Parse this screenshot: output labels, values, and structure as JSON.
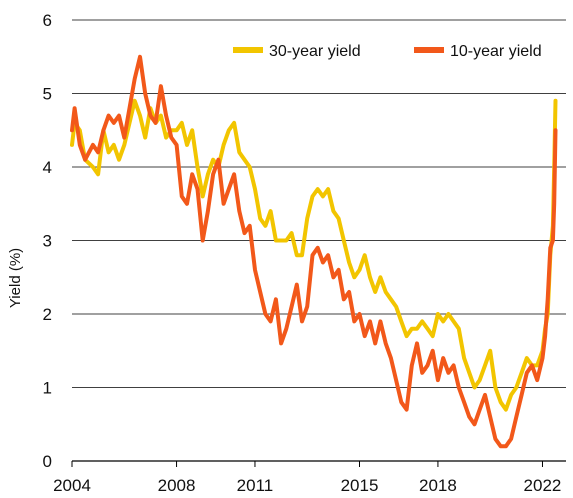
{
  "chart_data": {
    "type": "line",
    "title": "",
    "xlabel": "",
    "ylabel": "Yield (%)",
    "xlim": [
      2004,
      2022.9
    ],
    "ylim": [
      0,
      6
    ],
    "x_ticks": [
      2004,
      2008,
      2011,
      2015,
      2018,
      2022
    ],
    "y_ticks": [
      0,
      1,
      2,
      3,
      4,
      5,
      6
    ],
    "grid": "horizontal",
    "legend_position": "top-right",
    "colors": {
      "thirty": "#F2C500",
      "ten": "#F2581A",
      "grid": "#000000",
      "text": "#111111"
    },
    "series": [
      {
        "name": "30-year yield",
        "color": "#F2C500",
        "x": [
          2004.0,
          2004.1,
          2004.3,
          2004.5,
          2004.8,
          2005.0,
          2005.2,
          2005.4,
          2005.6,
          2005.8,
          2006.0,
          2006.2,
          2006.4,
          2006.6,
          2006.8,
          2007.0,
          2007.2,
          2007.4,
          2007.6,
          2007.8,
          2008.0,
          2008.2,
          2008.4,
          2008.6,
          2008.8,
          2009.0,
          2009.2,
          2009.4,
          2009.6,
          2009.8,
          2010.0,
          2010.2,
          2010.4,
          2010.6,
          2010.8,
          2011.0,
          2011.2,
          2011.4,
          2011.6,
          2011.8,
          2012.0,
          2012.2,
          2012.4,
          2012.6,
          2012.8,
          2013.0,
          2013.2,
          2013.4,
          2013.6,
          2013.8,
          2014.0,
          2014.2,
          2014.4,
          2014.6,
          2014.8,
          2015.0,
          2015.2,
          2015.4,
          2015.6,
          2015.8,
          2016.0,
          2016.2,
          2016.4,
          2016.6,
          2016.8,
          2017.0,
          2017.2,
          2017.4,
          2017.6,
          2017.8,
          2018.0,
          2018.2,
          2018.4,
          2018.6,
          2018.8,
          2019.0,
          2019.2,
          2019.4,
          2019.6,
          2019.8,
          2020.0,
          2020.2,
          2020.4,
          2020.6,
          2020.8,
          2021.0,
          2021.2,
          2021.4,
          2021.6,
          2021.8,
          2022.0,
          2022.1,
          2022.2,
          2022.3,
          2022.4,
          2022.45,
          2022.5
        ],
        "values": [
          4.3,
          4.6,
          4.5,
          4.1,
          4.0,
          3.9,
          4.5,
          4.2,
          4.3,
          4.1,
          4.3,
          4.6,
          4.9,
          4.7,
          4.4,
          4.8,
          4.6,
          4.7,
          4.4,
          4.5,
          4.5,
          4.6,
          4.3,
          4.5,
          4.0,
          3.6,
          3.9,
          4.1,
          4.0,
          4.3,
          4.5,
          4.6,
          4.2,
          4.1,
          4.0,
          3.7,
          3.3,
          3.2,
          3.4,
          3.0,
          3.0,
          3.0,
          3.1,
          2.8,
          2.8,
          3.3,
          3.6,
          3.7,
          3.6,
          3.7,
          3.4,
          3.3,
          3.0,
          2.7,
          2.5,
          2.6,
          2.8,
          2.5,
          2.3,
          2.5,
          2.3,
          2.2,
          2.1,
          1.9,
          1.7,
          1.8,
          1.8,
          1.9,
          1.8,
          1.7,
          2.0,
          1.9,
          2.0,
          1.9,
          1.8,
          1.4,
          1.2,
          1.0,
          1.1,
          1.3,
          1.5,
          1.0,
          0.8,
          0.7,
          0.9,
          1.0,
          1.2,
          1.4,
          1.3,
          1.3,
          1.5,
          1.8,
          2.0,
          2.8,
          3.2,
          4.0,
          4.9
        ]
      },
      {
        "name": "10-year yield",
        "color": "#F2581A",
        "x": [
          2004.0,
          2004.1,
          2004.3,
          2004.5,
          2004.8,
          2005.0,
          2005.2,
          2005.4,
          2005.6,
          2005.8,
          2006.0,
          2006.2,
          2006.4,
          2006.6,
          2006.8,
          2007.0,
          2007.2,
          2007.4,
          2007.6,
          2007.8,
          2008.0,
          2008.2,
          2008.4,
          2008.6,
          2008.8,
          2009.0,
          2009.2,
          2009.4,
          2009.6,
          2009.8,
          2010.0,
          2010.2,
          2010.4,
          2010.6,
          2010.8,
          2011.0,
          2011.2,
          2011.4,
          2011.6,
          2011.8,
          2012.0,
          2012.2,
          2012.4,
          2012.6,
          2012.8,
          2013.0,
          2013.2,
          2013.4,
          2013.6,
          2013.8,
          2014.0,
          2014.2,
          2014.4,
          2014.6,
          2014.8,
          2015.0,
          2015.2,
          2015.4,
          2015.6,
          2015.8,
          2016.0,
          2016.2,
          2016.4,
          2016.6,
          2016.8,
          2017.0,
          2017.2,
          2017.4,
          2017.6,
          2017.8,
          2018.0,
          2018.2,
          2018.4,
          2018.6,
          2018.8,
          2019.0,
          2019.2,
          2019.4,
          2019.6,
          2019.8,
          2020.0,
          2020.2,
          2020.4,
          2020.6,
          2020.8,
          2021.0,
          2021.2,
          2021.4,
          2021.6,
          2021.8,
          2022.0,
          2022.1,
          2022.2,
          2022.3,
          2022.4,
          2022.45,
          2022.5
        ],
        "values": [
          4.5,
          4.8,
          4.3,
          4.1,
          4.3,
          4.2,
          4.5,
          4.7,
          4.6,
          4.7,
          4.4,
          4.8,
          5.2,
          5.5,
          5.0,
          4.7,
          4.6,
          5.1,
          4.7,
          4.4,
          4.3,
          3.6,
          3.5,
          3.9,
          3.7,
          3.0,
          3.4,
          3.9,
          4.1,
          3.5,
          3.7,
          3.9,
          3.4,
          3.1,
          3.2,
          2.6,
          2.3,
          2.0,
          1.9,
          2.2,
          1.6,
          1.8,
          2.1,
          2.4,
          1.9,
          2.1,
          2.8,
          2.9,
          2.7,
          2.8,
          2.5,
          2.6,
          2.2,
          2.3,
          1.9,
          2.0,
          1.7,
          1.9,
          1.6,
          1.9,
          1.6,
          1.4,
          1.1,
          0.8,
          0.7,
          1.3,
          1.6,
          1.2,
          1.3,
          1.5,
          1.1,
          1.4,
          1.2,
          1.3,
          1.0,
          0.8,
          0.6,
          0.5,
          0.7,
          0.9,
          0.6,
          0.3,
          0.2,
          0.2,
          0.3,
          0.6,
          0.9,
          1.2,
          1.3,
          1.1,
          1.4,
          1.7,
          2.2,
          2.9,
          3.0,
          3.5,
          4.5
        ]
      }
    ]
  }
}
